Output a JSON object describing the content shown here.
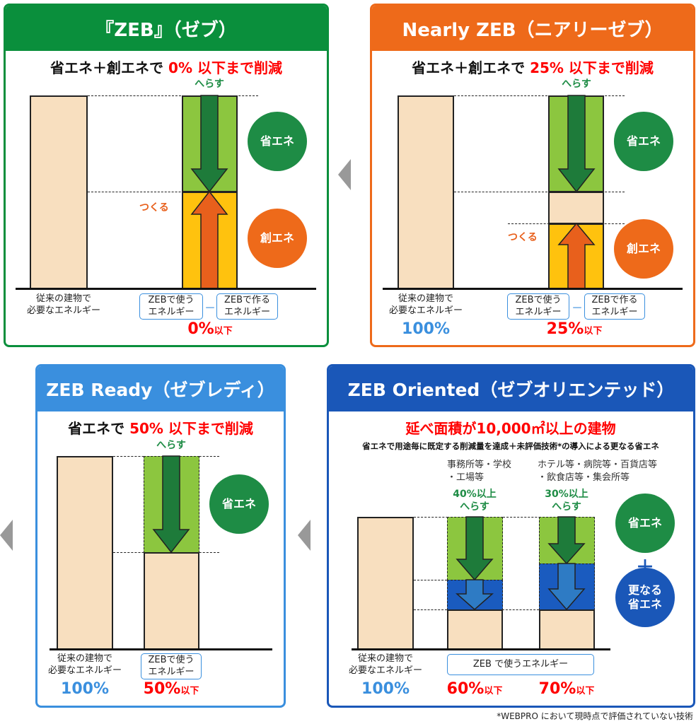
{
  "colors": {
    "zeb": "#0a8f3c",
    "nearly": "#ee6a1a",
    "ready": "#3a8fde",
    "oriented": "#1a57b8",
    "reduce": "#8cc63f",
    "create": "#ffc20e",
    "baseline_bar": "#f8dfbf",
    "red_text": "#ff0000",
    "blue_text": "#3a8fde"
  },
  "common": {
    "baseline_label_1": "従来の建物で",
    "baseline_label_2": "必要なエネルギー",
    "use_1": "ZEBで使う",
    "use_2": "エネルギー",
    "make_1": "ZEBで作る",
    "make_2": "エネルギー",
    "minus": "－",
    "reduce": "へらす",
    "create": "つくる",
    "save_circle": "省エネ",
    "create_circle": "創エネ",
    "below": "以下"
  },
  "zeb": {
    "title": "『ZEB』（ゼブ）",
    "sub_prefix": "省エネ＋創エネで ",
    "sub_red": "0% 以下まで削減",
    "result": "0%"
  },
  "nearly": {
    "title": "Nearly ZEB（ニアリーゼブ）",
    "sub_prefix": "省エネ＋創エネで ",
    "sub_red": "25% 以下まで削減",
    "baseline_pct": "100%",
    "result": "25%"
  },
  "ready": {
    "title": "ZEB Ready（ゼブレディ）",
    "sub_prefix": "省エネで ",
    "sub_red": "50% 以下まで削減",
    "baseline_pct": "100%",
    "result": "50%"
  },
  "oriented": {
    "title": "ZEB Oriented（ゼブオリエンテッド）",
    "sub_red": "延べ面積が10,000㎡以上の建物",
    "sub2": "省エネで用途毎に既定する削減量を達成＋未評価技術*の導入による更なる省エネ",
    "cat1_1": "事務所等・学校",
    "cat1_2": "・工場等",
    "cat2_1": "ホテル等・病院等・百貨店等",
    "cat2_2": "・飲食店等・集会所等",
    "red1_1": "40%以上",
    "red2_1": "30%以上",
    "extra_circle_1": "更なる",
    "extra_circle_2": "省エネ",
    "plus": "＋",
    "use_box": "ZEB で使うエネルギー",
    "baseline_pct": "100%",
    "result1": "60%",
    "result2": "70%"
  },
  "footnote": "*WEBPRO において現時点で評価されていない技術"
}
